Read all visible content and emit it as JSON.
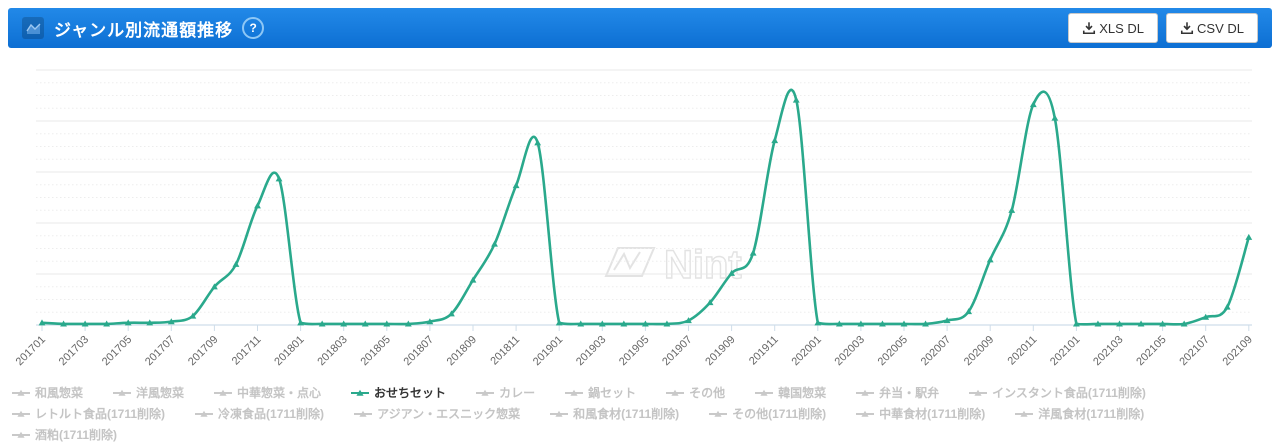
{
  "header": {
    "title": "ジャンル別流通額推移",
    "help_glyph": "?",
    "buttons": [
      {
        "label": "XLS DL",
        "icon": "download-icon"
      },
      {
        "label": "CSV DL",
        "icon": "download-icon"
      }
    ]
  },
  "watermark": "Nint",
  "colors": {
    "header_blue_top": "#2289e8",
    "header_blue_bottom": "#0d6fd3",
    "series_teal": "#2AA98C",
    "legend_inactive": "#c9c9c9",
    "axis_line": "#cfdde9",
    "grid_major": "#e8e8e8",
    "grid_minor": "#ededed",
    "tick_label": "#666666",
    "watermark_gray": "#e5e5e5"
  },
  "chart_data": {
    "type": "line",
    "title": "",
    "xlabel": "",
    "ylabel": "",
    "note": "No y-axis labels shown; values are relative units with the 201912 peak = 100",
    "ylim": [
      0,
      113
    ],
    "grid": "horizontal major solid + minor dotted",
    "legend_position": "bottom",
    "x": [
      "201701",
      "201702",
      "201703",
      "201704",
      "201705",
      "201706",
      "201707",
      "201708",
      "201709",
      "201710",
      "201711",
      "201712",
      "201801",
      "201802",
      "201803",
      "201804",
      "201805",
      "201806",
      "201807",
      "201808",
      "201809",
      "201810",
      "201811",
      "201812",
      "201901",
      "201902",
      "201903",
      "201904",
      "201905",
      "201906",
      "201907",
      "201908",
      "201909",
      "201910",
      "201911",
      "201912",
      "202001",
      "202002",
      "202003",
      "202004",
      "202005",
      "202006",
      "202007",
      "202008",
      "202009",
      "202010",
      "202011",
      "202012",
      "202101",
      "202102",
      "202103",
      "202104",
      "202105",
      "202106",
      "202107",
      "202108",
      "202109"
    ],
    "x_tick_labels": [
      "201701",
      "201703",
      "201705",
      "201707",
      "201709",
      "201711",
      "201801",
      "201803",
      "201805",
      "201807",
      "201809",
      "201811",
      "201901",
      "201903",
      "201905",
      "201907",
      "201909",
      "201911",
      "202001",
      "202003",
      "202005",
      "202007",
      "202009",
      "202011",
      "202101",
      "202103",
      "202105",
      "202107",
      "202109"
    ],
    "series": [
      {
        "name": "おせちセット",
        "color": "#2AA98C",
        "marker": "triangle",
        "values": [
          1,
          0.5,
          0.5,
          0.5,
          1,
          1,
          1.5,
          4,
          17,
          27,
          53,
          65,
          1,
          0.5,
          0.5,
          0.5,
          0.5,
          0.5,
          1.5,
          5,
          20,
          36,
          62,
          81,
          1,
          0.5,
          0.5,
          0.5,
          0.5,
          0.5,
          2,
          10,
          23,
          32,
          82,
          100,
          1,
          0.5,
          0.5,
          0.5,
          0.5,
          0.5,
          2,
          6,
          29,
          51,
          98,
          92,
          0.5,
          0.5,
          0.5,
          0.5,
          0.5,
          0.5,
          3.5,
          8,
          39
        ]
      }
    ]
  },
  "legend": {
    "items": [
      {
        "label": "和風惣菜",
        "active": false
      },
      {
        "label": "洋風惣菜",
        "active": false
      },
      {
        "label": "中華惣菜・点心",
        "active": false
      },
      {
        "label": "おせちセット",
        "active": true
      },
      {
        "label": "カレー",
        "active": false
      },
      {
        "label": "鍋セット",
        "active": false
      },
      {
        "label": "その他",
        "active": false
      },
      {
        "label": "韓国惣菜",
        "active": false
      },
      {
        "label": "弁当・駅弁",
        "active": false
      },
      {
        "label": "インスタント食品(1711削除)",
        "active": false
      },
      {
        "label": "レトルト食品(1711削除)",
        "active": false
      },
      {
        "label": "冷凍食品(1711削除)",
        "active": false
      },
      {
        "label": "アジアン・エスニック惣菜",
        "active": false
      },
      {
        "label": "和風食材(1711削除)",
        "active": false
      },
      {
        "label": "その他(1711削除)",
        "active": false
      },
      {
        "label": "中華食材(1711削除)",
        "active": false
      },
      {
        "label": "洋風食材(1711削除)",
        "active": false
      },
      {
        "label": "酒粕(1711削除)",
        "active": false
      }
    ]
  }
}
